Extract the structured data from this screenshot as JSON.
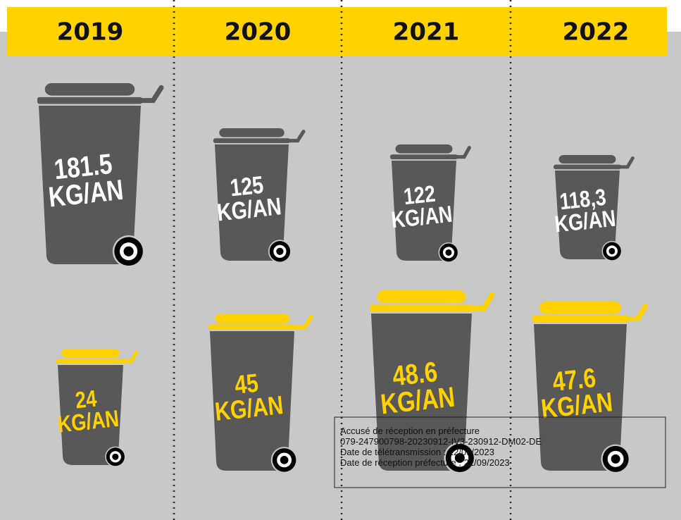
{
  "years": [
    "2019",
    "2020",
    "2021",
    "2022"
  ],
  "grey_bins": [
    {
      "value": "181.5",
      "unit": "KG/AN"
    },
    {
      "value": "125",
      "unit": "KG/AN"
    },
    {
      "value": "122",
      "unit": "KG/AN"
    },
    {
      "value": "118,3",
      "unit": "KG/AN"
    }
  ],
  "yellow_bins": [
    {
      "value": "24",
      "unit": "KG/AN"
    },
    {
      "value": "45",
      "unit": "KG/AN"
    },
    {
      "value": "48.6",
      "unit": "KG/AN"
    },
    {
      "value": "47.6",
      "unit": "KG/AN"
    }
  ],
  "stamp": {
    "lines": [
      "Accusé de réception en préfecture",
      "079-247900798-20230912-IV3-230912-DM02-DE",
      "Date de télétransmission : 22/09/2023",
      "Date de réception préfecture : 22/09/2023"
    ]
  }
}
